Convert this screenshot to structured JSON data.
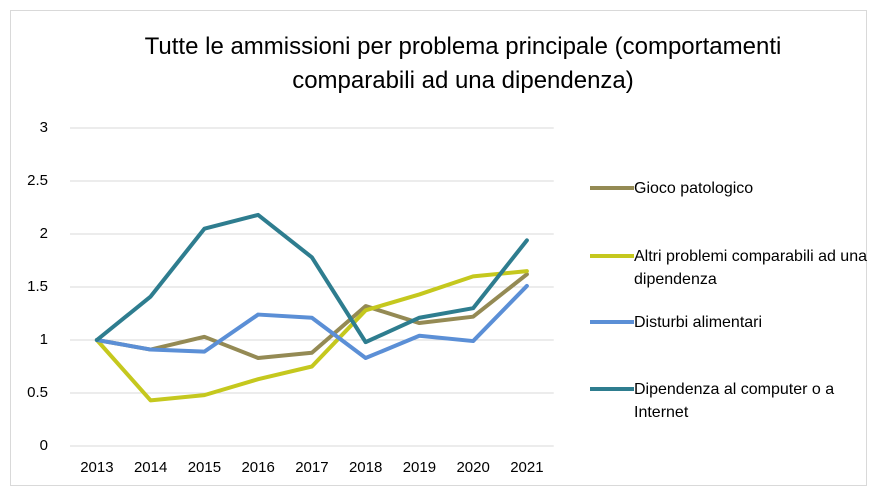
{
  "chart_data": {
    "type": "line",
    "title": "Tutte le ammissioni per problema principale (comportamenti comparabili ad una dipendenza)",
    "categories": [
      "2013",
      "2014",
      "2015",
      "2016",
      "2017",
      "2018",
      "2019",
      "2020",
      "2021"
    ],
    "series": [
      {
        "name": "Gioco patologico",
        "color": "#948a54",
        "values": [
          1,
          0.91,
          1.03,
          0.83,
          0.88,
          1.32,
          1.16,
          1.22,
          1.62
        ]
      },
      {
        "name": "Altri problemi comparabili ad una dipendenza",
        "color": "#c5c81e",
        "values": [
          1,
          0.43,
          0.48,
          0.63,
          0.75,
          1.28,
          1.43,
          1.6,
          1.65
        ]
      },
      {
        "name": "Disturbi alimentari",
        "color": "#5b8fd6",
        "values": [
          1,
          0.91,
          0.89,
          1.24,
          1.21,
          0.83,
          1.04,
          0.99,
          1.51
        ]
      },
      {
        "name": "Dipendenza al computer o a Internet",
        "color": "#2e7d8f",
        "values": [
          1,
          1.41,
          2.05,
          2.18,
          1.78,
          0.98,
          1.21,
          1.3,
          1.94
        ]
      }
    ],
    "ylim": [
      0,
      3
    ],
    "yticks": [
      0,
      0.5,
      1,
      1.5,
      2,
      2.5,
      3
    ],
    "grid": true,
    "legend": "right"
  }
}
